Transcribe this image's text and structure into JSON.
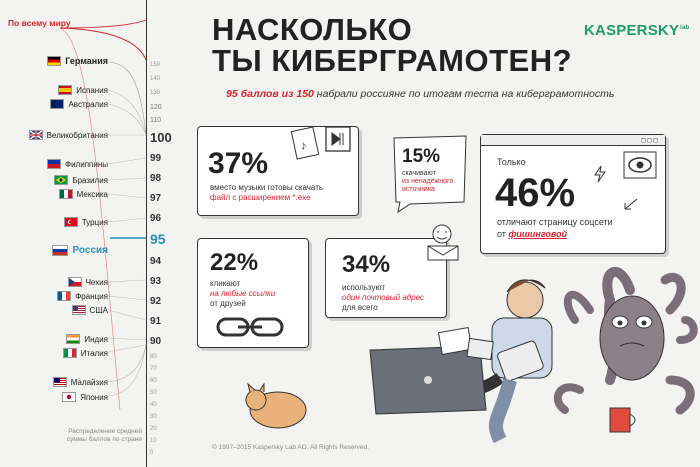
{
  "header": {
    "title_line1": "НАСКОЛЬКО",
    "title_line2": "ТЫ КИБЕРГРАМОТЕН?",
    "logo": "KASPERSKY",
    "logo_sub": "lab",
    "sub_score": "95 баллов из 150",
    "sub_rest": "набрали россияне по итогам теста на киберграмотность"
  },
  "sidebar": {
    "world_label": "По всему миру",
    "footer_label": "Распределение средней суммы баллов по стране",
    "countries": [
      {
        "name": "Германия",
        "flag": "de",
        "bold": true
      },
      {
        "name": "Испания",
        "flag": "es",
        "bold": false
      },
      {
        "name": "Австралия",
        "flag": "au",
        "bold": false
      },
      {
        "name": "Великобритания",
        "flag": "gb",
        "bold": false
      },
      {
        "name": "Филиппины",
        "flag": "ph",
        "bold": false
      },
      {
        "name": "Бразилия",
        "flag": "br",
        "bold": false
      },
      {
        "name": "Мексика",
        "flag": "mx",
        "bold": false
      },
      {
        "name": "Турция",
        "flag": "tr",
        "bold": false
      },
      {
        "name": "Россия",
        "flag": "ru",
        "bold": true
      },
      {
        "name": "Чехия",
        "flag": "cz",
        "bold": false
      },
      {
        "name": "Франция",
        "flag": "fr",
        "bold": false
      },
      {
        "name": "США",
        "flag": "us",
        "bold": false
      },
      {
        "name": "Индия",
        "flag": "in",
        "bold": false
      },
      {
        "name": "Италия",
        "flag": "it",
        "bold": false
      },
      {
        "name": "Малайзия",
        "flag": "my",
        "bold": false
      },
      {
        "name": "Япония",
        "flag": "jp",
        "bold": false
      }
    ],
    "scale_minor": [
      "150",
      "140",
      "130",
      "120",
      "110"
    ],
    "scale_major": [
      "100",
      "99",
      "98",
      "97",
      "96",
      "95",
      "94",
      "93",
      "92",
      "91",
      "90"
    ],
    "scale_bottom": [
      "80",
      "70",
      "60",
      "50",
      "40",
      "30",
      "20",
      "10",
      "0"
    ]
  },
  "cards": {
    "c1": {
      "pct": "37%",
      "line1": "вместо музыки готовы скачать",
      "line2": "файл с расширением *.exe"
    },
    "c2": {
      "pct": "15%",
      "line1": "скачивают",
      "line2": "из ненадёжного",
      "line3": "источника"
    },
    "c3": {
      "pre": "Только",
      "pct": "46%",
      "line1": "отличают страницу соцсети",
      "line2_a": "от",
      "line2_b": "фишинговой"
    },
    "c4": {
      "pct": "22%",
      "line1": "кликают",
      "line2": "на любые ссылки",
      "line3": "от друзей"
    },
    "c5": {
      "pct": "34%",
      "line1": "используют",
      "line2": "один почтовый адрес",
      "line3": "для всего"
    }
  },
  "footer": {
    "copyright": "© 1997–2015 Kaspersky Lab AO. All Rights Reserved."
  },
  "colors": {
    "accent_red": "#d4232b",
    "accent_teal": "#2b8fb5",
    "logo_green": "#1e9a6f"
  }
}
